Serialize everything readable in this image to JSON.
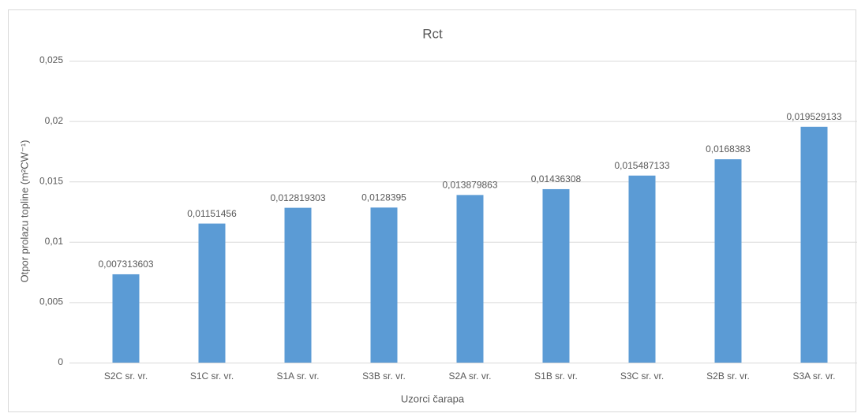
{
  "chart_data": {
    "type": "bar",
    "title": "Rct",
    "x_label": "Uzorci čarapa",
    "y_label": "Otpor prolazu topline (m²CW⁻¹)",
    "categories": [
      "S2C sr. vr.",
      "S1C sr. vr.",
      "S1A sr. vr.",
      "S3B sr. vr.",
      "S2A sr. vr.",
      "S1B sr. vr.",
      "S3C sr. vr.",
      "S2B sr. vr.",
      "S3A sr. vr."
    ],
    "values": [
      0.007313603,
      0.01151456,
      0.012819303,
      0.0128395,
      0.013879863,
      0.01436308,
      0.015487133,
      0.0168383,
      0.019529133
    ],
    "value_labels": [
      "0,007313603",
      "0,01151456",
      "0,012819303",
      "0,0128395",
      "0,013879863",
      "0,01436308",
      "0,015487133",
      "0,0168383",
      "0,019529133"
    ],
    "color": "#5b9bd5",
    "ylim": [
      0,
      0.025
    ],
    "yticks": [
      0,
      {
        "value": 0.005,
        "label": "0,005"
      },
      {
        "value": 0.01,
        "label": "0,01"
      },
      {
        "value": 0.015,
        "label": "0,015"
      },
      {
        "value": 0.02,
        "label": "0,02"
      },
      {
        "value": 0.025,
        "label": "0,025"
      }
    ],
    "grid": true
  }
}
